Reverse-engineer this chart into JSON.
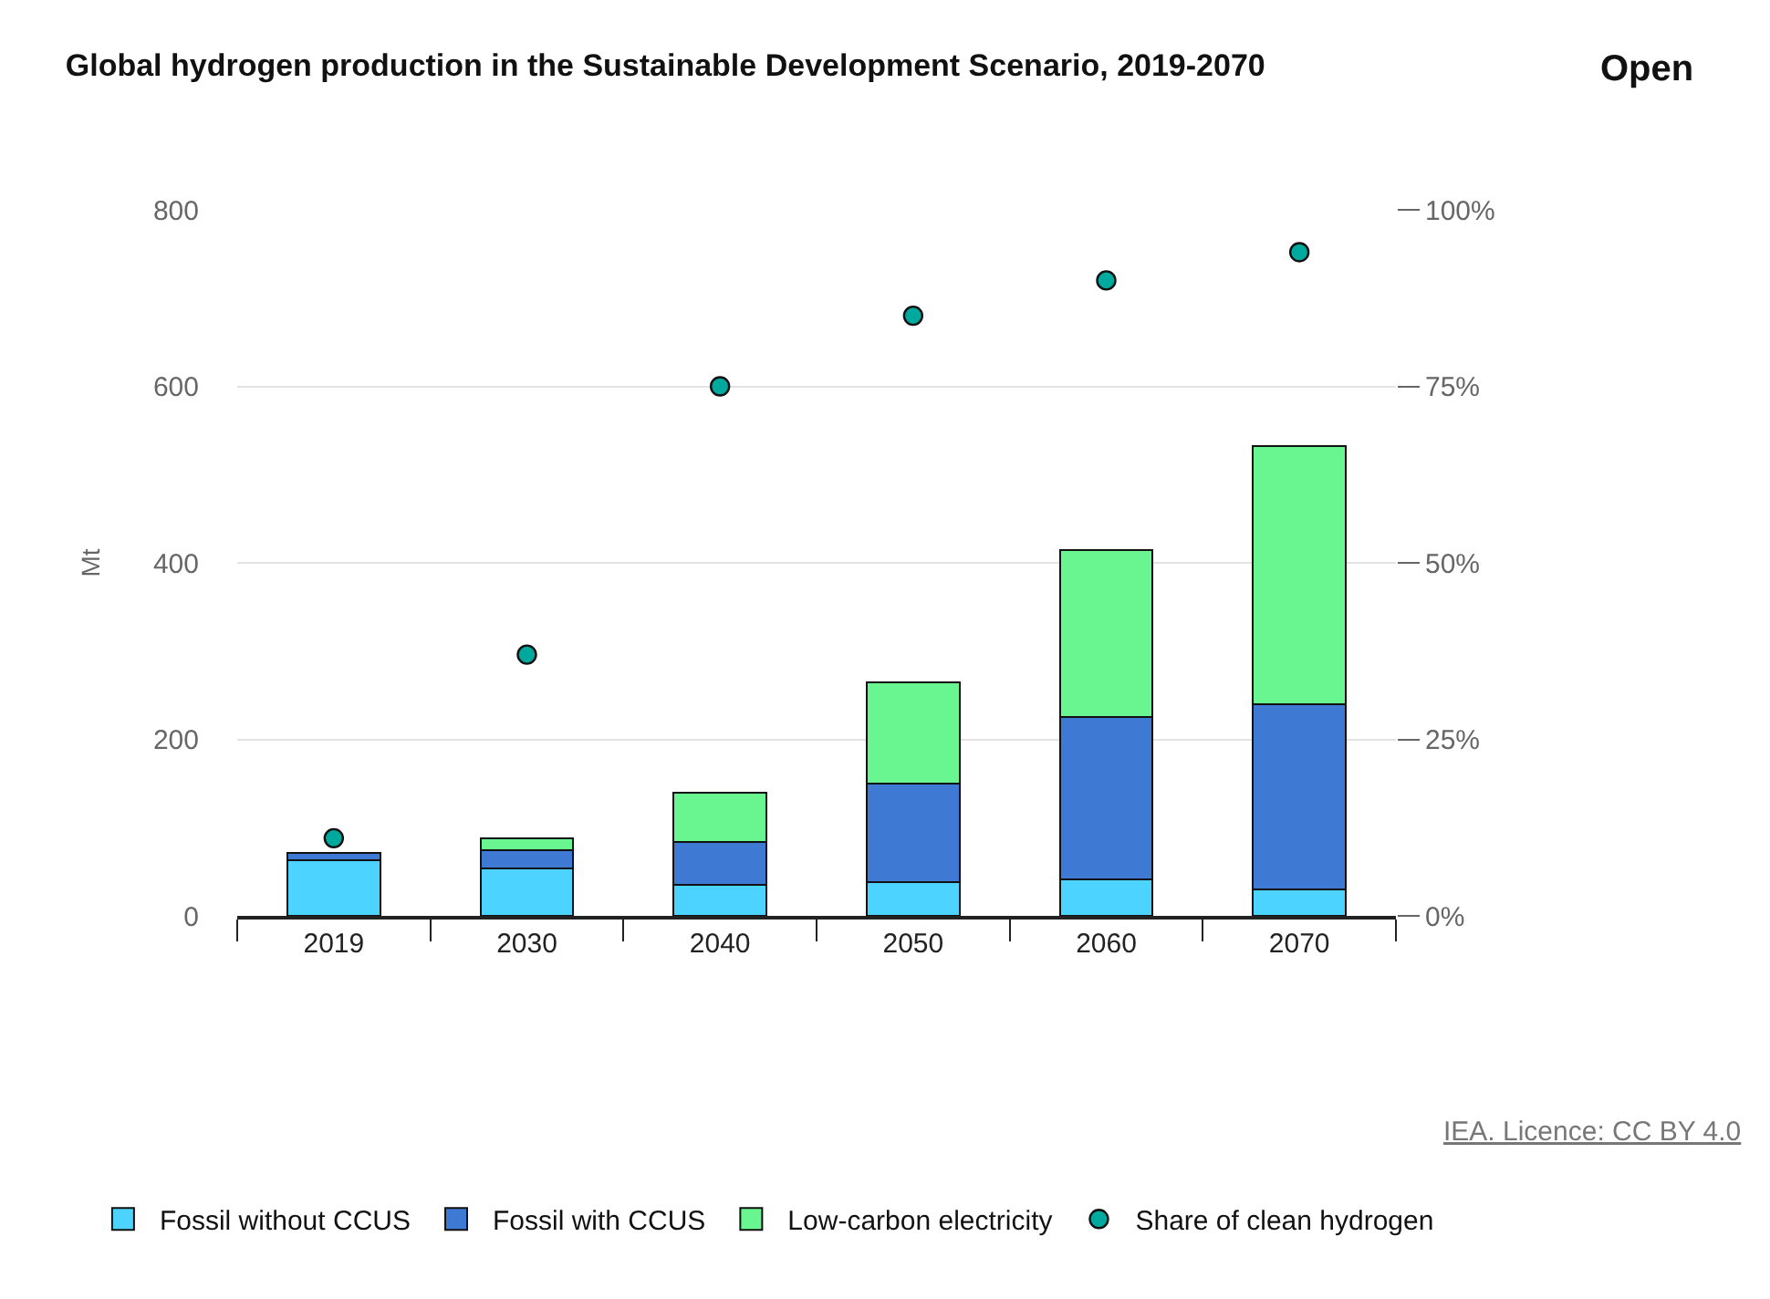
{
  "chart_data": {
    "type": "bar",
    "stacked": true,
    "title": "Global hydrogen production in the Sustainable Development Scenario, 2019-2070",
    "ylabel": "Mt",
    "categories": [
      "2019",
      "2030",
      "2040",
      "2050",
      "2060",
      "2070"
    ],
    "series": [
      {
        "name": "Fossil without CCUS",
        "color": "#4dd3ff",
        "values": [
          63,
          54,
          35,
          38,
          41,
          30
        ]
      },
      {
        "name": "Fossil with CCUS",
        "color": "#3e7ad3",
        "values": [
          8,
          20,
          49,
          112,
          184,
          210
        ]
      },
      {
        "name": "Low-carbon electricity",
        "color": "#69f590",
        "values": [
          null,
          14,
          56,
          115,
          189,
          292
        ]
      },
      {
        "name": "Share of clean hydrogen",
        "type": "scatter",
        "axis": "y2",
        "color": "#00a99d",
        "values": [
          11,
          37,
          75,
          85,
          90,
          94
        ]
      }
    ],
    "ylim": [
      0,
      800
    ],
    "yticks": [
      0,
      200,
      400,
      600,
      800
    ],
    "y2lim": [
      0,
      100
    ],
    "y2ticks": [
      {
        "value": 0,
        "label": "0%"
      },
      {
        "value": 25,
        "label": "25%"
      },
      {
        "value": 50,
        "label": "50%"
      },
      {
        "value": 75,
        "label": "75%"
      },
      {
        "value": 100,
        "label": "100%"
      }
    ],
    "grid": "y",
    "legend": "bottom",
    "marker": "circle",
    "annotations": [
      "Open",
      "IEA. Licence: CC BY 4.0"
    ]
  }
}
